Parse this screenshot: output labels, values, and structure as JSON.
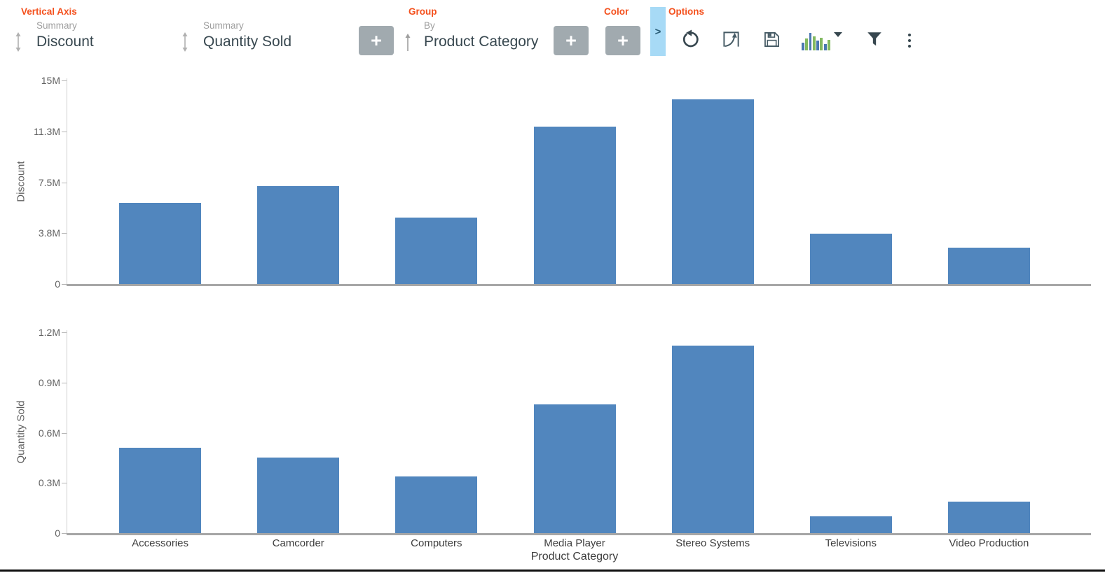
{
  "colors": {
    "accent": "#f4511e",
    "bar": "#5186be",
    "add_button_bg": "#a1aaaf",
    "panel_toggle_bg": "#a7daf6",
    "icon": "#37474f",
    "chart_icon_blue": "#4a78b0",
    "chart_icon_green": "#82b960"
  },
  "toolbar": {
    "vertical_axis_label": "Vertical Axis",
    "fields": [
      {
        "caption": "Summary",
        "value": "Discount",
        "icon": "up-down-arrow-icon"
      },
      {
        "caption": "Summary",
        "value": "Quantity Sold",
        "icon": "up-down-arrow-icon"
      }
    ],
    "group_label": "Group",
    "group_field": {
      "caption": "By",
      "value": "Product Category",
      "icon": "up-arrow-icon"
    },
    "color_label": "Color",
    "options_label": "Options",
    "add_button_label": "+",
    "panel_toggle_glyph": ">",
    "icons": [
      "undo-icon",
      "transpose-chart-icon",
      "save-icon",
      "chart-type-icon",
      "dropdown-caret-icon",
      "filter-icon",
      "more-options-icon"
    ]
  },
  "chart_data": [
    {
      "type": "bar",
      "title": "",
      "ylabel": "Discount",
      "xlabel": "",
      "unit": "M",
      "categories": [
        "Accessories",
        "Camcorder",
        "Computers",
        "Media Player",
        "Stereo Systems",
        "Televisions",
        "Video Production"
      ],
      "values": [
        6.0,
        7.2,
        4.9,
        11.6,
        13.6,
        3.7,
        2.7
      ],
      "ylim": [
        0,
        15
      ],
      "yticks": [
        {
          "v": 0,
          "label": "0"
        },
        {
          "v": 3.75,
          "label": "3.8M"
        },
        {
          "v": 7.5,
          "label": "7.5M"
        },
        {
          "v": 11.25,
          "label": "11.3M"
        },
        {
          "v": 15,
          "label": "15M"
        }
      ],
      "grid": false,
      "legend": null,
      "x_labels_visible": false,
      "bar_color": "#5186be"
    },
    {
      "type": "bar",
      "title": "",
      "ylabel": "Quantity Sold",
      "xlabel": "Product Category",
      "unit": "M",
      "categories": [
        "Accessories",
        "Camcorder",
        "Computers",
        "Media Player",
        "Stereo Systems",
        "Televisions",
        "Video Production"
      ],
      "values": [
        0.51,
        0.45,
        0.34,
        0.77,
        1.12,
        0.1,
        0.19
      ],
      "ylim": [
        0,
        1.2
      ],
      "yticks": [
        {
          "v": 0,
          "label": "0"
        },
        {
          "v": 0.3,
          "label": "0.3M"
        },
        {
          "v": 0.6,
          "label": "0.6M"
        },
        {
          "v": 0.9,
          "label": "0.9M"
        },
        {
          "v": 1.2,
          "label": "1.2M"
        }
      ],
      "grid": false,
      "legend": null,
      "x_labels_visible": true,
      "bar_color": "#5186be"
    }
  ]
}
